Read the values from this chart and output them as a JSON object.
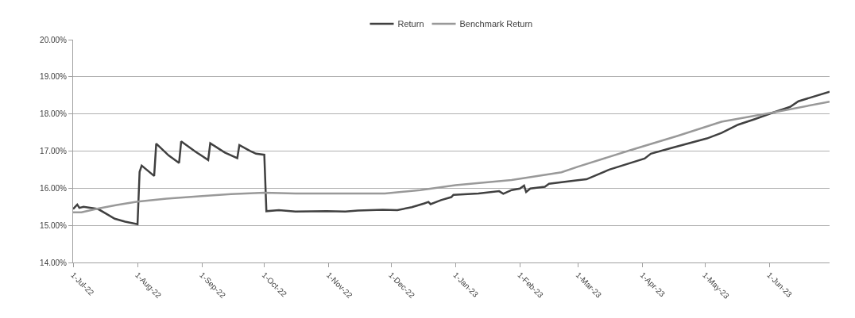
{
  "chart_data": {
    "type": "line",
    "legend": "top",
    "grid": "y",
    "marker": "none",
    "line_style": "solid",
    "ylim": [
      14,
      20
    ],
    "yticks": [
      {
        "value": 14,
        "label": "14.00%"
      },
      {
        "value": 15,
        "label": "15.00%"
      },
      {
        "value": 16,
        "label": "16.00%"
      },
      {
        "value": 17,
        "label": "17.00%"
      },
      {
        "value": 18,
        "label": "18.00%"
      },
      {
        "value": 19,
        "label": "19.00%"
      },
      {
        "value": 20,
        "label": "20.00%"
      }
    ],
    "xlim": [
      "2022-07-01",
      "2023-06-30"
    ],
    "xticks": [
      {
        "value": "2022-07-01",
        "label": "1-Jul-22"
      },
      {
        "value": "2022-08-01",
        "label": "1-Aug-22"
      },
      {
        "value": "2022-09-01",
        "label": "1-Sep-22"
      },
      {
        "value": "2022-10-01",
        "label": "1-Oct-22"
      },
      {
        "value": "2022-11-01",
        "label": "1-Nov-22"
      },
      {
        "value": "2022-12-01",
        "label": "1-Dec-22"
      },
      {
        "value": "2023-01-01",
        "label": "1-Jan-23"
      },
      {
        "value": "2023-02-01",
        "label": "1-Feb-23"
      },
      {
        "value": "2023-03-01",
        "label": "1-Mar-23"
      },
      {
        "value": "2023-04-01",
        "label": "1-Apr-23"
      },
      {
        "value": "2023-05-01",
        "label": "1-May-23"
      },
      {
        "value": "2023-06-01",
        "label": "1-Jun-23"
      }
    ],
    "series": [
      {
        "name": "Return",
        "color": "#404040",
        "x": [
          "2022-07-01",
          "2022-07-03",
          "2022-07-04",
          "2022-07-06",
          "2022-07-13",
          "2022-07-17",
          "2022-07-21",
          "2022-07-26",
          "2022-08-01",
          "2022-08-02",
          "2022-08-03",
          "2022-08-09",
          "2022-08-10",
          "2022-08-16",
          "2022-08-21",
          "2022-08-22",
          "2022-08-29",
          "2022-09-04",
          "2022-09-05",
          "2022-09-12",
          "2022-09-18",
          "2022-09-19",
          "2022-09-24",
          "2022-09-27",
          "2022-10-01",
          "2022-10-02",
          "2022-10-08",
          "2022-10-16",
          "2022-10-31",
          "2022-11-09",
          "2022-11-15",
          "2022-11-27",
          "2022-12-04",
          "2022-12-11",
          "2022-12-17",
          "2022-12-19",
          "2022-12-20",
          "2022-12-25",
          "2022-12-30",
          "2022-12-31",
          "2023-01-12",
          "2023-01-22",
          "2023-01-24",
          "2023-01-28",
          "2023-02-01",
          "2023-02-03",
          "2023-02-04",
          "2023-02-06",
          "2023-02-13",
          "2023-02-15",
          "2023-02-28",
          "2023-03-05",
          "2023-03-16",
          "2023-04-02",
          "2023-04-05",
          "2023-04-14",
          "2023-05-02",
          "2023-05-09",
          "2023-05-17",
          "2023-05-25",
          "2023-06-03",
          "2023-06-11",
          "2023-06-15",
          "2023-06-30"
        ],
        "values": [
          15.44,
          15.56,
          15.47,
          15.5,
          15.44,
          15.31,
          15.18,
          15.1,
          15.03,
          16.44,
          16.61,
          16.33,
          17.2,
          16.88,
          16.68,
          17.26,
          16.98,
          16.76,
          17.21,
          16.96,
          16.81,
          17.16,
          17.01,
          16.93,
          16.9,
          15.38,
          15.41,
          15.37,
          15.38,
          15.37,
          15.4,
          15.42,
          15.41,
          15.49,
          15.59,
          15.63,
          15.57,
          15.68,
          15.76,
          15.82,
          15.86,
          15.92,
          15.85,
          15.95,
          15.99,
          16.07,
          15.9,
          15.99,
          16.04,
          16.12,
          16.21,
          16.24,
          16.5,
          16.8,
          16.93,
          17.07,
          17.34,
          17.49,
          17.71,
          17.86,
          18.04,
          18.19,
          18.34,
          18.6
        ]
      },
      {
        "name": "Benchmark Return",
        "color": "#999999",
        "x": [
          "2022-07-01",
          "2022-07-05",
          "2022-07-13",
          "2022-07-22",
          "2022-08-01",
          "2022-08-15",
          "2022-09-01",
          "2022-09-15",
          "2022-10-01",
          "2022-10-16",
          "2022-11-28",
          "2022-12-15",
          "2023-01-01",
          "2023-01-28",
          "2023-02-21",
          "2023-03-01",
          "2023-03-26",
          "2023-04-18",
          "2023-05-09",
          "2023-06-03",
          "2023-06-30"
        ],
        "values": [
          15.35,
          15.35,
          15.45,
          15.55,
          15.64,
          15.72,
          15.79,
          15.84,
          15.88,
          15.86,
          15.86,
          15.95,
          16.08,
          16.22,
          16.43,
          16.58,
          17.02,
          17.41,
          17.79,
          18.04,
          18.33
        ]
      }
    ]
  }
}
